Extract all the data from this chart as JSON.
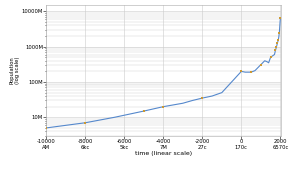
{
  "title": "",
  "xlabel": "time (linear scale)",
  "ylabel": "Population\n(log scale)",
  "xmin": -10000,
  "xmax": 2050,
  "ymin": 3000000.0,
  "ymax": 15000000000.0,
  "background_color": "#ffffff",
  "grid_color": "#cccccc",
  "line_color": "#5588cc",
  "marker_color": "#cc9933",
  "data_years": [
    -10000,
    -8000,
    -6500,
    -5000,
    -4000,
    -3000,
    -2500,
    -2000,
    -1500,
    -1000,
    -500,
    0,
    200,
    500,
    700,
    1000,
    1200,
    1340,
    1400,
    1500,
    1600,
    1700,
    1750,
    1800,
    1850,
    1900,
    1920,
    1940,
    1950,
    1960,
    1970,
    1980,
    1990,
    2000,
    2005
  ],
  "data_population": [
    5000000.0,
    7000000.0,
    10000000.0,
    15000000.0,
    20000000.0,
    25000000.0,
    30000000.0,
    35000000.0,
    40000000.0,
    50000000.0,
    100000000.0,
    200000000.0,
    190000000.0,
    190000000.0,
    210000000.0,
    310000000.0,
    400000000.0,
    370000000.0,
    350000000.0,
    500000000.0,
    550000000.0,
    600000000.0,
    790000000.0,
    980000000.0,
    1260000000.0,
    1600000000.0,
    1860000000.0,
    2300000000.0,
    2520000000.0,
    3020000000.0,
    3700000000.0,
    4430000000.0,
    5260000000.0,
    6090000000.0,
    6500000000.0
  ],
  "marker_years": [
    -10000,
    -8000,
    -5000,
    -4000,
    -2000,
    0,
    500,
    1000,
    1500,
    1750,
    1800,
    1850,
    1900,
    1950,
    2005
  ],
  "marker_population": [
    5000000.0,
    7000000.0,
    15000000.0,
    20000000.0,
    35000000.0,
    200000000.0,
    190000000.0,
    310000000.0,
    500000000.0,
    790000000.0,
    980000000.0,
    1260000000.0,
    1600000000.0,
    2520000000.0,
    6500000000.0
  ],
  "xtick_vals": [
    -10000,
    -8000,
    -6000,
    -4000,
    -2000,
    0,
    2000
  ],
  "xtick_top": [
    "-10000",
    "-8000",
    "-6000",
    "-4000",
    "-2000",
    "0",
    "2000"
  ],
  "xtick_bot": [
    "AM",
    "6kc",
    "5kc",
    "7M",
    "27c",
    "170c",
    "6570c"
  ],
  "ytick_vals": [
    10000000,
    100000000,
    1000000000,
    10000000000
  ],
  "ytick_labels": [
    "10M",
    "100M",
    "1000M",
    "10000M"
  ]
}
